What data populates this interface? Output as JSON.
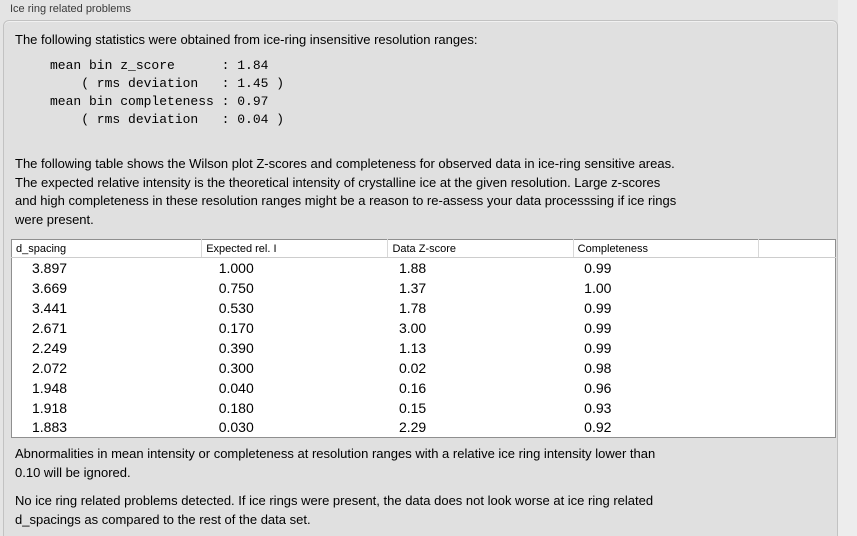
{
  "groupbox": {
    "title": "Ice ring related problems"
  },
  "intro": "The following statistics were obtained from ice-ring insensitive resolution ranges:",
  "stats_block": "mean bin z_score      : 1.84\n    ( rms deviation   : 1.45 )\nmean bin completeness : 0.97\n    ( rms deviation   : 0.04 )",
  "table_intro": "The following table shows the Wilson plot Z-scores and completeness for observed data in ice-ring sensitive areas.\nThe expected relative intensity is the theoretical intensity of crystalline ice at the given resolution. Large z-scores\nand high completeness in these resolution ranges might be a reason to re-assess your data processsing if ice rings\nwere present.",
  "table": {
    "columns": [
      "d_spacing",
      "Expected rel. I",
      "Data Z-score",
      "Completeness"
    ],
    "rows": [
      {
        "d": "3.897",
        "e": "1.000",
        "z": "1.88",
        "c": "0.99"
      },
      {
        "d": "3.669",
        "e": "0.750",
        "z": "1.37",
        "c": "1.00"
      },
      {
        "d": "3.441",
        "e": "0.530",
        "z": "1.78",
        "c": "0.99"
      },
      {
        "d": "2.671",
        "e": "0.170",
        "z": "3.00",
        "c": "0.99"
      },
      {
        "d": "2.249",
        "e": "0.390",
        "z": "1.13",
        "c": "0.99"
      },
      {
        "d": "2.072",
        "e": "0.300",
        "z": "0.02",
        "c": "0.98"
      },
      {
        "d": "1.948",
        "e": "0.040",
        "z": "0.16",
        "c": "0.96"
      },
      {
        "d": "1.918",
        "e": "0.180",
        "z": "0.15",
        "c": "0.93"
      },
      {
        "d": "1.883",
        "e": "0.030",
        "z": "2.29",
        "c": "0.92"
      }
    ]
  },
  "note": "Abnormalities in mean intensity or completeness at resolution ranges with a relative ice ring intensity lower than\n0.10 will be ignored.",
  "verdict": "No ice ring related problems detected. If ice rings were present, the data does not look worse at ice ring related\nd_spacings as compared to the rest of the data set."
}
